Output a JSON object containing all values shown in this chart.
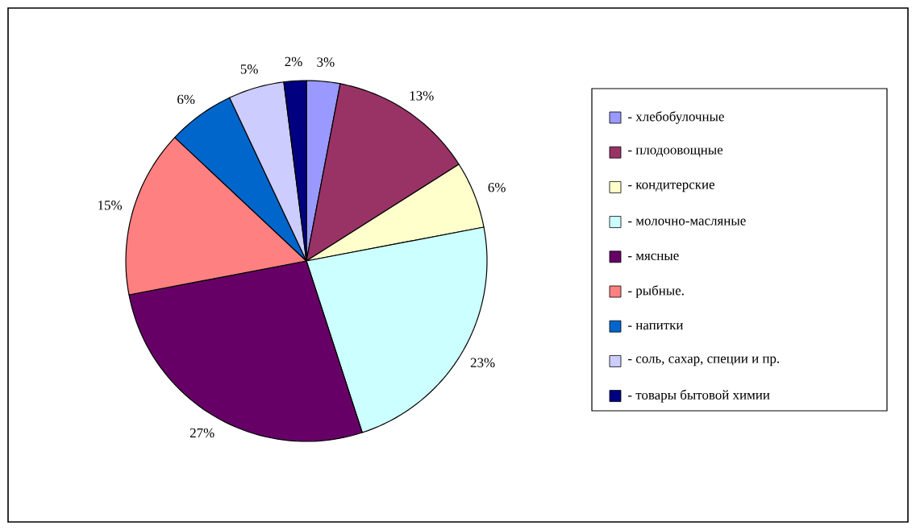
{
  "chart_data": {
    "type": "pie",
    "categories": [
      "- хлебобулочные",
      "- плодоовощные",
      "- кондитерские",
      "- молочно-масляные",
      "- мясные",
      "- рыбные.",
      "- напитки",
      "- соль, сахар, специи и пр.",
      "- товары бытовой химии"
    ],
    "values": [
      3,
      13,
      6,
      23,
      27,
      15,
      6,
      5,
      2
    ],
    "value_labels": [
      "3%",
      "13%",
      "6%",
      "23%",
      "27%",
      "15%",
      "6%",
      "5%",
      "2%"
    ],
    "colors": [
      "#9999ff",
      "#993366",
      "#ffffcc",
      "#ccffff",
      "#660066",
      "#ff8080",
      "#0066cc",
      "#ccccff",
      "#000080"
    ],
    "legend": "right"
  }
}
